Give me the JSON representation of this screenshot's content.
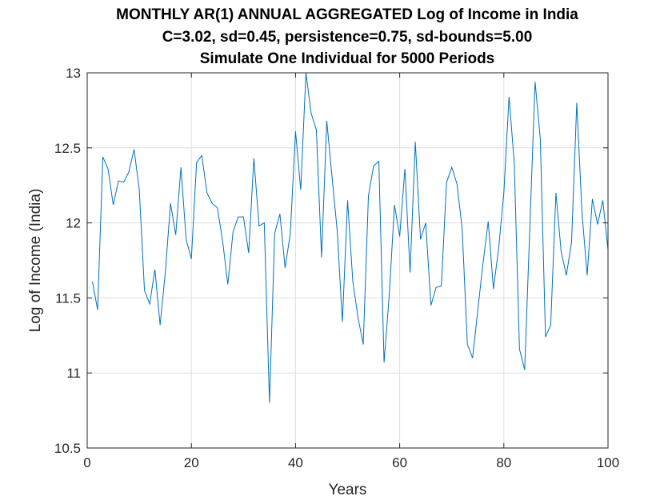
{
  "chart_data": {
    "type": "line",
    "title": [
      "MONTHLY AR(1) ANNUAL AGGREGATED Log of Income in India",
      "C=3.02, sd=0.45, persistence=0.75, sd-bounds=5.00",
      "Simulate One Individual for 5000 Periods"
    ],
    "xlabel": "Years",
    "ylabel": "Log of Income (India)",
    "xlim": [
      0,
      100
    ],
    "ylim": [
      10.5,
      13
    ],
    "xticks": [
      0,
      20,
      40,
      60,
      80,
      100
    ],
    "yticks": [
      10.5,
      11,
      11.5,
      12,
      12.5,
      13
    ],
    "xtick_labels": [
      "0",
      "20",
      "40",
      "60",
      "80",
      "100"
    ],
    "ytick_labels": [
      "10.5",
      "11",
      "11.5",
      "12",
      "12.5",
      "13"
    ],
    "grid": true,
    "line_color": "#0072BD",
    "series": [
      {
        "x": [
          1,
          2,
          3,
          4,
          5,
          6,
          7,
          8,
          9,
          10,
          11,
          12,
          13,
          14,
          15,
          16,
          17,
          18,
          19,
          20,
          21,
          22,
          23,
          24,
          25,
          26,
          27,
          28,
          29,
          30,
          31,
          32,
          33,
          34,
          35,
          36,
          37,
          38,
          39,
          40,
          41,
          42,
          43,
          44,
          45,
          46,
          47,
          48,
          49,
          50,
          51,
          52,
          53,
          54,
          55,
          56,
          57,
          58,
          59,
          60,
          61,
          62,
          63,
          64,
          65,
          66,
          67,
          68,
          69,
          70,
          71,
          72,
          73,
          74,
          75,
          76,
          77,
          78,
          79,
          80,
          81,
          82,
          83,
          84,
          85,
          86,
          87,
          88,
          89,
          90,
          91,
          92,
          93,
          94,
          95,
          96,
          97,
          98,
          99,
          100
        ],
        "y": [
          11.61,
          11.42,
          12.44,
          12.36,
          12.12,
          12.28,
          12.27,
          12.34,
          12.49,
          12.22,
          11.55,
          11.46,
          11.69,
          11.32,
          11.67,
          12.13,
          11.92,
          12.37,
          11.89,
          11.76,
          12.4,
          12.45,
          12.2,
          12.13,
          12.1,
          11.88,
          11.59,
          11.94,
          12.04,
          12.04,
          11.8,
          12.43,
          11.98,
          12.0,
          10.8,
          11.93,
          12.06,
          11.7,
          11.93,
          12.61,
          12.22,
          13.0,
          12.73,
          12.62,
          11.77,
          12.68,
          12.31,
          11.95,
          11.34,
          12.15,
          11.61,
          11.37,
          11.19,
          12.18,
          12.38,
          12.41,
          11.07,
          11.52,
          12.12,
          11.91,
          12.36,
          11.67,
          12.54,
          11.89,
          12.0,
          11.45,
          11.57,
          11.58,
          12.27,
          12.37,
          12.26,
          11.96,
          11.19,
          11.1,
          11.42,
          11.73,
          12.01,
          11.56,
          11.83,
          12.2,
          12.84,
          12.4,
          11.16,
          11.02,
          11.98,
          12.94,
          12.56,
          11.24,
          11.32,
          12.2,
          11.81,
          11.65,
          11.87,
          12.8,
          12.07,
          11.65,
          12.16,
          11.99,
          12.15,
          11.82
        ]
      }
    ]
  }
}
